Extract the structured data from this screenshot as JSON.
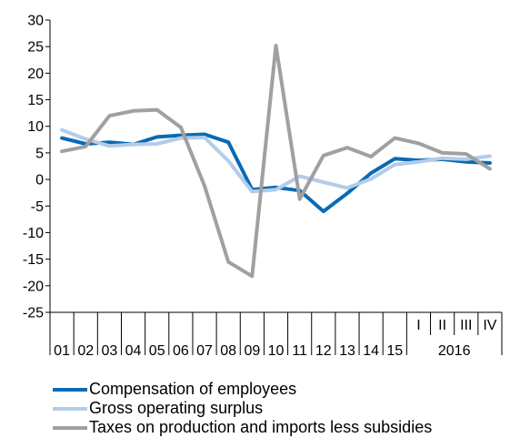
{
  "chart_data": {
    "type": "line",
    "title": "",
    "xlabel": "",
    "ylabel": "",
    "ylim": [
      -25,
      30
    ],
    "yticks": [
      30,
      25,
      20,
      15,
      10,
      5,
      0,
      -5,
      -10,
      -15,
      -20,
      -25
    ],
    "ytick_labels": [
      "30",
      "25",
      "20",
      "15",
      "10",
      "5",
      "0",
      "-5",
      "-10",
      "-15",
      "-20",
      "-25"
    ],
    "grid": false,
    "legend_position": "bottom",
    "categories": [
      "01",
      "02",
      "03",
      "04",
      "05",
      "06",
      "07",
      "08",
      "09",
      "10",
      "11",
      "12",
      "13",
      "14",
      "15",
      "I",
      "II",
      "III",
      "IV"
    ],
    "year_group": {
      "label": "2016",
      "categories": [
        "I",
        "II",
        "III",
        "IV"
      ]
    },
    "series": [
      {
        "name": "Compensation of employees",
        "color": "#0a6ab4",
        "values": [
          7.8,
          6.7,
          7.0,
          6.6,
          8.0,
          8.3,
          8.5,
          7.0,
          -1.9,
          -1.5,
          -2.1,
          -6.0,
          -2.6,
          1.2,
          3.9,
          3.6,
          3.8,
          3.3,
          3.1
        ]
      },
      {
        "name": "Gross operating surplus",
        "color": "#b3cce8",
        "values": [
          9.3,
          7.6,
          6.3,
          6.6,
          6.7,
          7.8,
          7.9,
          3.5,
          -2.3,
          -1.9,
          0.6,
          -0.5,
          -1.6,
          0.1,
          2.8,
          3.3,
          4.0,
          3.8,
          4.4
        ]
      },
      {
        "name": "Taxes on production and imports less subsidies",
        "color": "#a0a0a0",
        "values": [
          5.3,
          6.2,
          12.0,
          12.9,
          13.1,
          9.8,
          -1.2,
          -15.5,
          -18.2,
          25.2,
          -3.7,
          4.5,
          6.0,
          4.3,
          7.8,
          6.8,
          5.0,
          4.8,
          2.0
        ]
      }
    ]
  }
}
